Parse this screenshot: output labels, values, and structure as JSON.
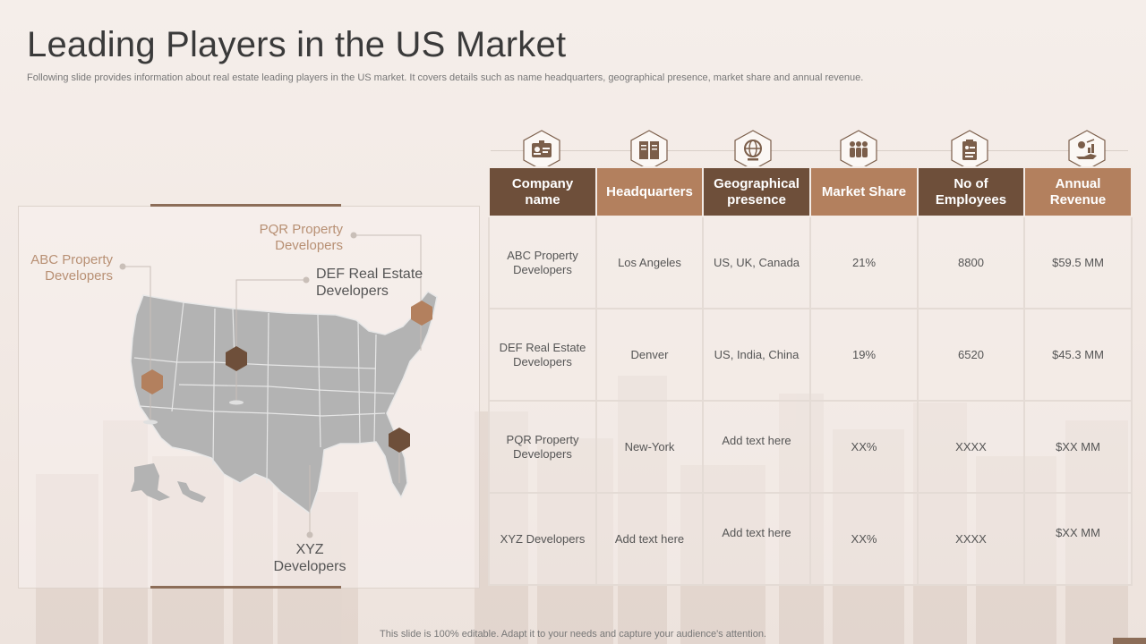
{
  "slide": {
    "title": "Leading Players in the US Market",
    "subtitle": "Following slide provides information about real estate leading players in the US market. It covers details such as name headquarters, geographical presence, market share and annual revenue.",
    "footer": "This slide is 100% editable. Adapt it to your needs and capture your audience's attention."
  },
  "map": {
    "labels": {
      "pqr": "PQR Property Developers",
      "abc": "ABC Property Developers",
      "def": "DEF Real Estate Developers",
      "xyz": "XYZ Developers"
    }
  },
  "table": {
    "headers": [
      "Company name",
      "Headquarters",
      "Geographical presence",
      "Market Share",
      "No of Employees",
      "Annual Revenue"
    ],
    "header_icons": [
      "id-card-icon",
      "book-icon",
      "globe-icon",
      "people-icon",
      "clipboard-icon",
      "revenue-growth-icon"
    ],
    "rows": [
      [
        "ABC Property Developers",
        "Los Angeles",
        "US, UK, Canada",
        "21%",
        "8800",
        "$59.5  MM"
      ],
      [
        "DEF Real Estate Developers",
        "Denver",
        "US, India,  China",
        "19%",
        "6520",
        "$45.3  MM"
      ],
      [
        "PQR Property Developers",
        "New-York",
        "Add text here",
        "XX%",
        "XXXX",
        "$XX  MM"
      ],
      [
        "XYZ  Developers",
        "Add text here",
        "Add text here",
        "XX%",
        "XXXX",
        "$XX  MM"
      ]
    ]
  },
  "colors": {
    "dark_brown": "#6e4f3a",
    "light_brown": "#b3805e",
    "accent_tan": "#b89074",
    "map_gray": "#b3b3b3"
  }
}
